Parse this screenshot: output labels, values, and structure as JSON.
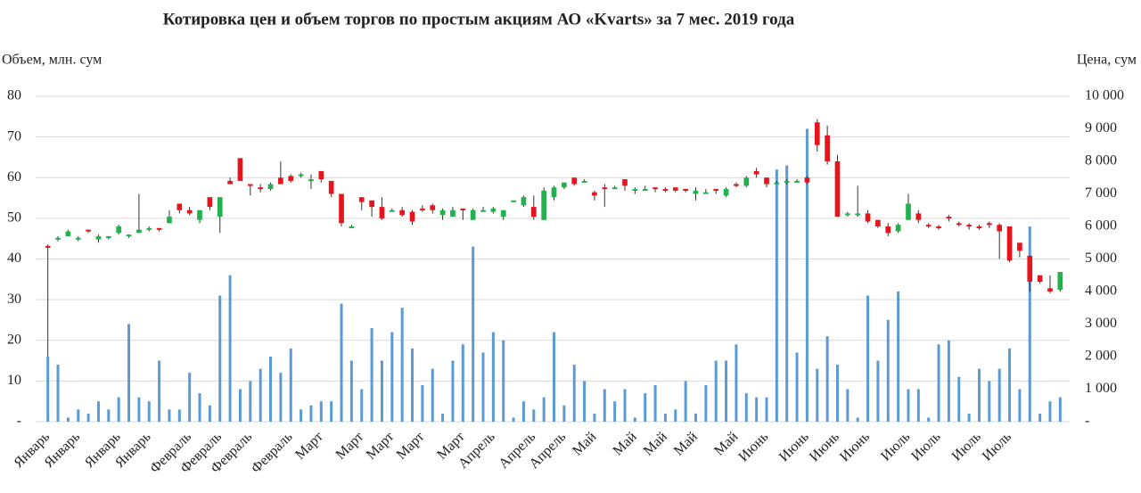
{
  "chart_data": {
    "type": "candlestick",
    "title": "Котировка цен и объем торгов по простым акциям АО «Kvarts» за 7 мес. 2019 года",
    "y_label": "Объем, млн. сум",
    "y2_label": "Цена, сум",
    "grid": true,
    "ylim": [
      0,
      80
    ],
    "yticks": [
      {
        "value": 0,
        "label": "-"
      },
      10,
      20,
      30,
      40,
      50,
      60,
      70,
      80
    ],
    "y2lim": [
      0,
      10000
    ],
    "y2ticks": [
      {
        "value": 0,
        "label": "-"
      },
      {
        "value": 1000,
        "label": "1 000"
      },
      {
        "value": 2000,
        "label": "2 000"
      },
      {
        "value": 3000,
        "label": "3 000"
      },
      {
        "value": 4000,
        "label": "4 000"
      },
      {
        "value": 5000,
        "label": "5 000"
      },
      {
        "value": 6000,
        "label": "6 000"
      },
      {
        "value": 7000,
        "label": "7 000"
      },
      {
        "value": 8000,
        "label": "8 000"
      },
      {
        "value": 9000,
        "label": "9 000"
      },
      {
        "value": 10000,
        "label": "10 000"
      }
    ],
    "categories": [
      "Январь",
      null,
      null,
      "Январь",
      null,
      null,
      null,
      "Январь",
      null,
      null,
      "Январь",
      null,
      null,
      null,
      "Февраль",
      null,
      null,
      "Февраль",
      null,
      null,
      "Февраль",
      null,
      null,
      null,
      "Февраль",
      null,
      null,
      "Март",
      null,
      null,
      null,
      "Март",
      null,
      null,
      "Март",
      null,
      null,
      "Март",
      null,
      null,
      null,
      "Март",
      null,
      null,
      "Апрель",
      null,
      null,
      null,
      "Апрель",
      null,
      null,
      "Апрель",
      null,
      null,
      "Май",
      null,
      null,
      null,
      "Май",
      null,
      null,
      "Май",
      null,
      null,
      "Май",
      null,
      null,
      null,
      "Май",
      null,
      null,
      "Июнь",
      null,
      null,
      null,
      "Июнь",
      null,
      null,
      "Июнь",
      null,
      null,
      "Июнь",
      null,
      null,
      null,
      "Июль",
      null,
      null,
      "Июль",
      null,
      null,
      null,
      "Июль",
      null,
      null,
      "Июль",
      null,
      null,
      null,
      null,
      null
    ],
    "volume": {
      "color": "#5b9bd5",
      "values": [
        16,
        14,
        1,
        3,
        2,
        5,
        3,
        6,
        24,
        6,
        5,
        15,
        3,
        3,
        12,
        7,
        4,
        31,
        36,
        8,
        10,
        13,
        16,
        12,
        18,
        3,
        4,
        5,
        5,
        29,
        15,
        8,
        23,
        15,
        22,
        28,
        18,
        9,
        13,
        2,
        15,
        19,
        43,
        17,
        22,
        20,
        1,
        5,
        3,
        6,
        22,
        4,
        14,
        10,
        2,
        8,
        5,
        8,
        1,
        7,
        9,
        2,
        3,
        10,
        2,
        9,
        15,
        15,
        19,
        7,
        6,
        6,
        62,
        63,
        17,
        72,
        13,
        21,
        14,
        8,
        1,
        31,
        15,
        25,
        32,
        8,
        8,
        1,
        19,
        20,
        11,
        2,
        13,
        10,
        13,
        18,
        8,
        48,
        2,
        5,
        6
      ]
    },
    "price": {
      "axis": "y2",
      "up_color": "#22b14c",
      "down_color": "#e8141c",
      "open": [
        5400,
        5600,
        5700,
        5600,
        5900,
        5600,
        5650,
        5800,
        5700,
        5800,
        5900,
        5950,
        6100,
        6700,
        6500,
        6200,
        6900,
        6300,
        7400,
        8100,
        7300,
        7200,
        7150,
        7500,
        7550,
        7550,
        7450,
        7700,
        7400,
        7000,
        6000,
        6900,
        6800,
        6600,
        6500,
        6500,
        6450,
        6550,
        6650,
        6350,
        6300,
        6550,
        6200,
        6500,
        6450,
        6300,
        6800,
        6650,
        6600,
        6200,
        6900,
        7200,
        7500,
        7400,
        7050,
        7200,
        7200,
        7450,
        7150,
        7150,
        7200,
        7150,
        7200,
        7150,
        7000,
        7050,
        7150,
        6950,
        7300,
        7250,
        7700,
        7500,
        7350,
        7350,
        7400,
        7500,
        9200,
        8800,
        8000,
        6400,
        6350,
        6400,
        6200,
        6000,
        5850,
        6200,
        6400,
        6050,
        6000,
        6300,
        6100,
        6050,
        6000,
        6100,
        6050,
        6000,
        5500,
        5100,
        4500,
        4100,
        4050
      ],
      "close": [
        5350,
        5650,
        5850,
        5650,
        5850,
        5700,
        5700,
        6000,
        5750,
        5900,
        5950,
        5900,
        6300,
        6500,
        6400,
        6500,
        6600,
        6900,
        7300,
        7400,
        7250,
        7150,
        7300,
        7300,
        7400,
        7600,
        7450,
        7450,
        7000,
        6100,
        6000,
        6750,
        6600,
        6250,
        6500,
        6350,
        6150,
        6500,
        6500,
        6500,
        6500,
        6500,
        6500,
        6500,
        6550,
        6500,
        6800,
        6900,
        6300,
        7100,
        7200,
        7350,
        7300,
        7400,
        6950,
        7150,
        7200,
        7250,
        7150,
        7150,
        7150,
        7100,
        7100,
        7100,
        7100,
        7050,
        7100,
        7150,
        7250,
        7500,
        7600,
        7300,
        7350,
        7400,
        7400,
        7350,
        8500,
        8000,
        6300,
        6400,
        6400,
        6150,
        6000,
        5800,
        6050,
        6700,
        6200,
        6000,
        5950,
        6250,
        6050,
        6000,
        5950,
        6050,
        5850,
        4950,
        5250,
        4300,
        4300,
        4000,
        4600
      ],
      "high": [
        5450,
        5700,
        5900,
        5700,
        5900,
        5750,
        5700,
        6050,
        5750,
        7000,
        6000,
        5950,
        6500,
        6700,
        6600,
        6500,
        6900,
        6900,
        7500,
        8100,
        7300,
        7300,
        7350,
        8000,
        7600,
        7650,
        7600,
        7700,
        7400,
        7000,
        6050,
        6900,
        6800,
        6900,
        6550,
        6600,
        6500,
        6650,
        6700,
        6550,
        6600,
        6550,
        6550,
        6600,
        6600,
        6500,
        6800,
        6950,
        6950,
        7200,
        7250,
        7350,
        7500,
        7450,
        7100,
        7300,
        7250,
        7450,
        7200,
        7250,
        7200,
        7200,
        7200,
        7150,
        7200,
        7150,
        7150,
        7200,
        7350,
        7550,
        7800,
        7500,
        7400,
        7450,
        7450,
        7550,
        9300,
        9100,
        8200,
        6450,
        7250,
        6500,
        6200,
        6100,
        6100,
        7000,
        6500,
        6100,
        6050,
        6350,
        6150,
        6100,
        6050,
        6150,
        6100,
        6000,
        5500,
        5100,
        4500,
        4500,
        4600
      ],
      "low": [
        2000,
        5550,
        5700,
        5550,
        5800,
        5500,
        5600,
        5750,
        5650,
        5800,
        5850,
        5850,
        6100,
        6400,
        6350,
        6100,
        6500,
        5800,
        7300,
        7400,
        6950,
        7050,
        7100,
        7300,
        7350,
        7500,
        7150,
        7350,
        6900,
        6000,
        5950,
        6500,
        6300,
        6200,
        6450,
        6300,
        6050,
        6450,
        6400,
        6200,
        6300,
        6200,
        6200,
        6450,
        6400,
        6200,
        6750,
        6600,
        6200,
        6200,
        6800,
        7150,
        7250,
        7350,
        6800,
        6600,
        7150,
        7100,
        7000,
        7100,
        7050,
        7050,
        7050,
        7050,
        6800,
        7000,
        7000,
        6900,
        7200,
        7200,
        7500,
        7200,
        7300,
        7300,
        7350,
        7300,
        8300,
        7900,
        6300,
        6300,
        6300,
        6100,
        5950,
        5700,
        5800,
        6200,
        6100,
        5950,
        5900,
        6150,
        6000,
        5900,
        5900,
        5950,
        5000,
        4900,
        5050,
        4000,
        4250,
        3950,
        4000
      ]
    }
  }
}
